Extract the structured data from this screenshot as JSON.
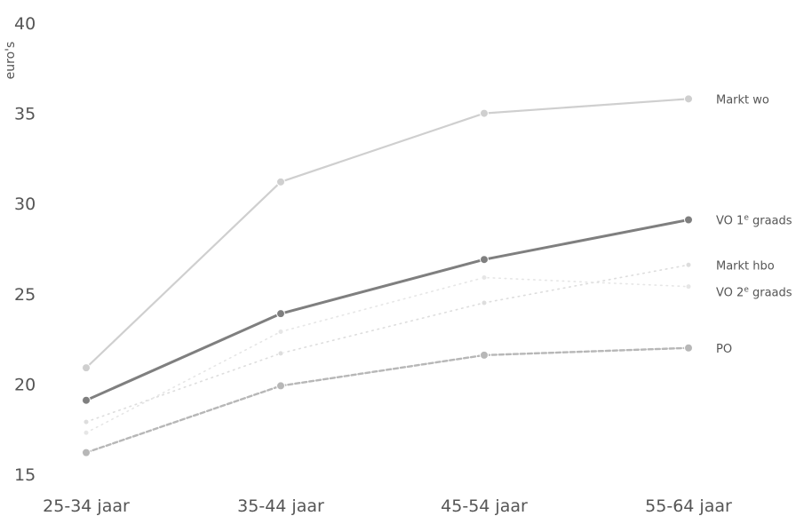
{
  "chart_data": {
    "type": "line",
    "title": "",
    "ylabel": "euro's",
    "xlabel": "",
    "ylim": [
      15,
      40
    ],
    "yticks": [
      15,
      20,
      25,
      30,
      35,
      40
    ],
    "grid": false,
    "categories": [
      "25-34 jaar",
      "35-44 jaar",
      "45-54 jaar",
      "55-64 jaar"
    ],
    "series": [
      {
        "name": "Markt wo",
        "values": [
          20.9,
          31.2,
          35.0,
          35.8
        ],
        "color": "#cfcfcf",
        "style": "solid"
      },
      {
        "name": "VO 1e graads",
        "values": [
          19.1,
          23.9,
          26.9,
          29.1
        ],
        "color": "#7f7f7f",
        "style": "solid"
      },
      {
        "name": "Markt hbo",
        "values": [
          17.9,
          21.7,
          24.5,
          26.6
        ],
        "color": "#dddddd",
        "style": "dotted"
      },
      {
        "name": "VO 2e graads",
        "values": [
          17.3,
          22.9,
          25.9,
          25.4
        ],
        "color": "#e6e6e6",
        "style": "dotted"
      },
      {
        "name": "PO",
        "values": [
          16.2,
          19.9,
          21.6,
          22.0
        ],
        "color": "#b7b7b7",
        "style": "dashed"
      }
    ]
  }
}
